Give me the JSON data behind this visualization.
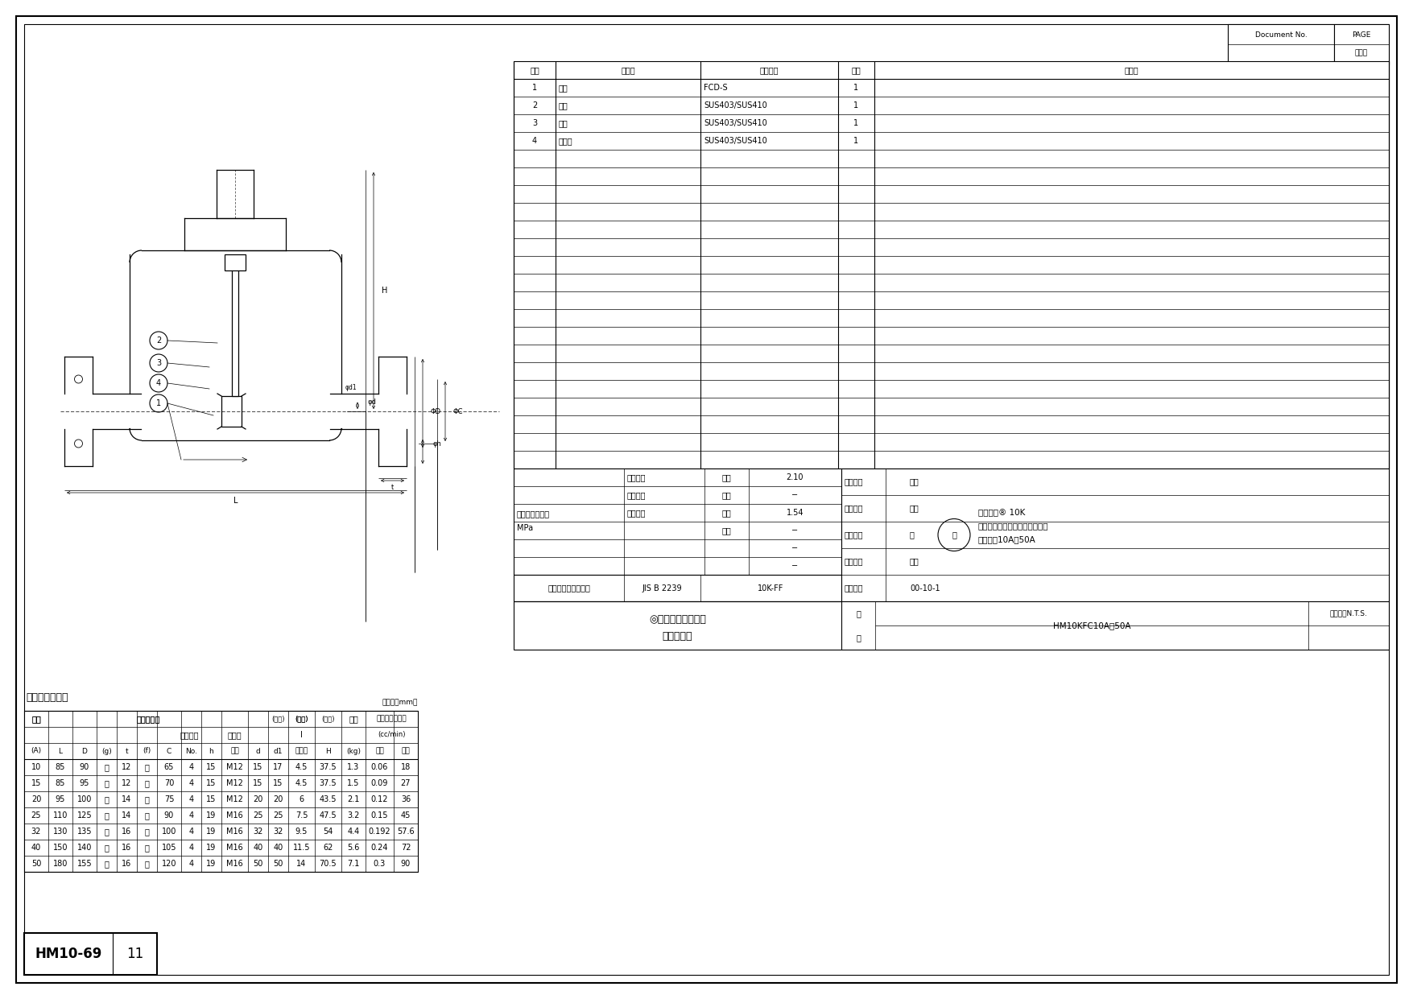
{
  "bg": "#ffffff",
  "doc_number_label": "Document No.",
  "page_label_top": "PAGE",
  "page_label_bot": "ページ",
  "drawing_number": "HM10-69",
  "drawing_revision": "11",
  "parts_headers": [
    "品番",
    "品　名",
    "材　　質",
    "数量",
    "備　考"
  ],
  "parts_data": [
    [
      "1",
      "弁箇",
      "FCD-S",
      "1",
      ""
    ],
    [
      "2",
      "ふた",
      "SUS403/SUS410",
      "1",
      ""
    ],
    [
      "3",
      "弁体",
      "SUS403/SUS410",
      "1",
      ""
    ],
    [
      "4",
      "弁座輪",
      "SUS403/SUS410",
      "1",
      ""
    ]
  ],
  "parts_empty_rows": 18,
  "dim_title": "主　要　寸　法",
  "dim_unit": "（単位：mm）",
  "dim_col_labels": [
    "(A)",
    "L",
    "D",
    "(g)",
    "t",
    "(f)",
    "C",
    "No.",
    "h",
    "呼び",
    "d",
    "d1",
    "リフト",
    "H",
    "(kg)",
    "水圧",
    "空圧"
  ],
  "dim_col_widths": [
    30,
    30,
    30,
    25,
    25,
    25,
    30,
    25,
    25,
    33,
    25,
    25,
    33,
    33,
    30,
    35,
    30
  ],
  "dim_data": [
    [
      "10",
      "85",
      "90",
      "－",
      "12",
      "－",
      "65",
      "4",
      "15",
      "M12",
      "15",
      "17",
      "4.5",
      "37.5",
      "1.3",
      "0.06",
      "18"
    ],
    [
      "15",
      "85",
      "95",
      "－",
      "12",
      "－",
      "70",
      "4",
      "15",
      "M12",
      "15",
      "15",
      "4.5",
      "37.5",
      "1.5",
      "0.09",
      "27"
    ],
    [
      "20",
      "95",
      "100",
      "－",
      "14",
      "－",
      "75",
      "4",
      "15",
      "M12",
      "20",
      "20",
      "6",
      "43.5",
      "2.1",
      "0.12",
      "36"
    ],
    [
      "25",
      "110",
      "125",
      "－",
      "14",
      "－",
      "90",
      "4",
      "19",
      "M16",
      "25",
      "25",
      "7.5",
      "47.5",
      "3.2",
      "0.15",
      "45"
    ],
    [
      "32",
      "130",
      "135",
      "－",
      "16",
      "－",
      "100",
      "4",
      "19",
      "M16",
      "32",
      "32",
      "9.5",
      "54",
      "4.4",
      "0.192",
      "57.6"
    ],
    [
      "40",
      "150",
      "140",
      "－",
      "16",
      "－",
      "105",
      "4",
      "19",
      "M16",
      "40",
      "40",
      "11.5",
      "62",
      "5.6",
      "0.24",
      "72"
    ],
    [
      "50",
      "180",
      "155",
      "－",
      "16",
      "－",
      "120",
      "4",
      "19",
      "M16",
      "50",
      "50",
      "14",
      "70.5",
      "7.1",
      "0.3",
      "90"
    ]
  ],
  "insp_label_line1": "検　査　圧　力",
  "insp_label_line2": "MPa",
  "insp_rows": [
    [
      "弁箇耓圧",
      "水圧",
      "2.10"
    ],
    [
      "弁箇気密",
      "空圧",
      "−"
    ],
    [
      "弁座漏れ",
      "水圧",
      "1.54"
    ],
    [
      "",
      "空圧",
      "−"
    ],
    [
      "",
      "",
      "−"
    ],
    [
      "",
      "",
      "−"
    ]
  ],
  "conn_label": "接　続　部　規　格",
  "conn_value": "JIS B 2239",
  "conn_class": "10K-FF",
  "prod_rows": [
    [
      "製　図：",
      "中川"
    ],
    [
      "検　図：",
      "相原"
    ],
    [
      "審　査：",
      "阪"
    ],
    [
      "承　認：",
      "古川"
    ],
    [
      "日　付：",
      "00-10-1"
    ]
  ],
  "product_lines": [
    "マレフル® 10K",
    "汎用フランジ形リフト逆止め弁",
    "サイズ　10A～50A"
  ],
  "company_name_line1": "◎日立金属株式会社",
  "company_name_line2": "　桑名工場",
  "fig_label_top": "図",
  "fig_label_bot": "番",
  "figure_number": "HM10KFC10A～50A",
  "scale_label": "縮　尺：N.T.S."
}
